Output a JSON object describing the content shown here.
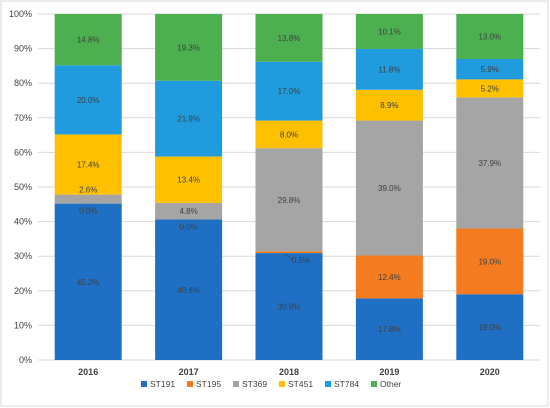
{
  "chart_data": {
    "type": "bar",
    "stacked": true,
    "normalized": true,
    "categories": [
      "2016",
      "2017",
      "2018",
      "2019",
      "2020"
    ],
    "series": [
      {
        "name": "ST191",
        "color": "#1F6FC5",
        "values": [
          45.2,
          40.6,
          30.9,
          17.8,
          19.0
        ],
        "labels": [
          "45.2%",
          "40.6%",
          "30.9%",
          "17.8%",
          "19.0%"
        ]
      },
      {
        "name": "ST195",
        "color": "#F47B20",
        "values": [
          0.0,
          0.0,
          0.5,
          12.4,
          19.0
        ],
        "labels": [
          "0.0%",
          "0.0%",
          "0.5%",
          "12.4%",
          "19.0%"
        ]
      },
      {
        "name": "ST369",
        "color": "#A5A5A5",
        "values": [
          2.6,
          4.8,
          29.8,
          39.0,
          37.9
        ],
        "labels": [
          "2.6%",
          "4.8%",
          "29.8%",
          "39.0%",
          "37.9%"
        ]
      },
      {
        "name": "ST451",
        "color": "#FFC000",
        "values": [
          17.4,
          13.4,
          8.0,
          8.9,
          5.2
        ],
        "labels": [
          "17.4%",
          "13.4%",
          "8.0%",
          "8.9%",
          "5.2%"
        ]
      },
      {
        "name": "ST784",
        "color": "#1F9BDE",
        "values": [
          20.0,
          21.9,
          17.0,
          11.8,
          5.9
        ],
        "labels": [
          "20.0%",
          "21.9%",
          "17.0%",
          "11.8%",
          "5.9%"
        ]
      },
      {
        "name": "Other",
        "color": "#4CAF50",
        "values": [
          14.8,
          19.3,
          13.8,
          10.1,
          13.0
        ],
        "labels": [
          "14.8%",
          "19.3%",
          "13.8%",
          "10.1%",
          "13.0%"
        ]
      }
    ],
    "y_ticks": [
      "0%",
      "10%",
      "20%",
      "30%",
      "40%",
      "50%",
      "60%",
      "70%",
      "80%",
      "90%",
      "100%"
    ],
    "ylim": [
      0,
      100
    ],
    "grid": true,
    "legend_position": "bottom",
    "title": "",
    "xlabel": "",
    "ylabel": ""
  }
}
